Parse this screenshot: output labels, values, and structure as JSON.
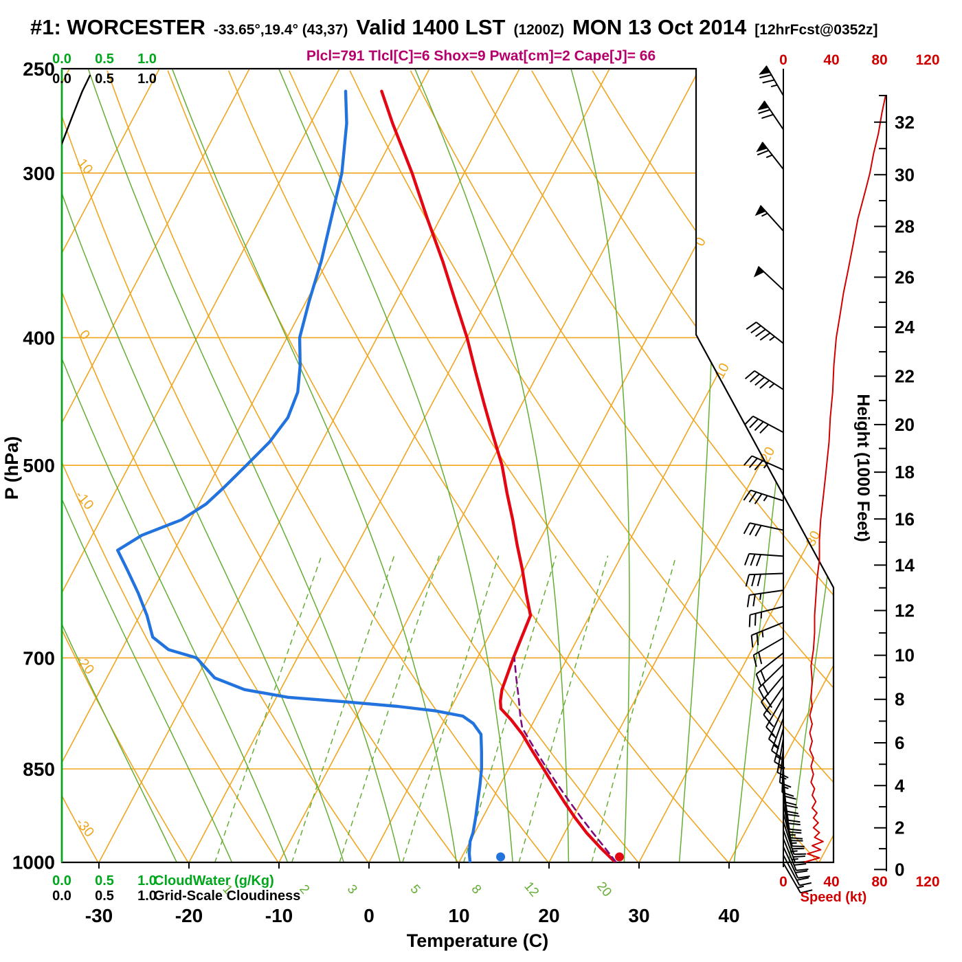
{
  "header": {
    "station": "#1: WORCESTER",
    "coords": "-33.65°,19.4° (43,37)",
    "valid": "Valid 1400 LST",
    "valid_utc": "(1200Z)",
    "date": "MON 13 Oct 2014",
    "fcst": "[12hrFcst@0352z]",
    "params": "Plcl=791 Tlcl[C]=6 Shox=9 Pwat[cm]=2 Cape[J]= 66"
  },
  "axes": {
    "pressure": {
      "title": "P (hPa)",
      "ticks": [
        250,
        300,
        400,
        500,
        700,
        850,
        1000
      ],
      "gridlines": [
        300,
        400,
        500,
        700,
        850
      ]
    },
    "temperature": {
      "title": "Temperature (C)",
      "ticks": [
        -30,
        -20,
        -10,
        0,
        10,
        20,
        30,
        40
      ]
    },
    "height": {
      "title": "Height (1000 Feet)",
      "ticks": [
        0,
        2,
        4,
        6,
        8,
        10,
        12,
        14,
        16,
        18,
        20,
        22,
        24,
        26,
        28,
        30,
        32
      ]
    },
    "speed": {
      "title": "Speed (kt)",
      "ticks": [
        0,
        40,
        80,
        120
      ]
    },
    "cloudwater": {
      "title": "CloudWater (g/Kg)",
      "ticks": [
        "0.0",
        "0.5",
        "1.0"
      ]
    },
    "cloudiness": {
      "title": "Grid-Scale Cloudiness",
      "ticks": [
        "0.0",
        "0.5",
        "1.0"
      ]
    }
  },
  "grid_labels": {
    "dry_adiabats_c": [
      10,
      0,
      -10,
      -20,
      -30
    ],
    "isotherms_c": [
      0,
      10,
      20,
      30
    ],
    "mixing_ratio_gkg": [
      1,
      2,
      3,
      5,
      8,
      12,
      20
    ]
  },
  "colors": {
    "isotherm_orange": "#f0a51f",
    "adiabat_green": "#64ad34",
    "axis_green": "#00a61b",
    "temp_red": "#e30613",
    "speed_red": "#d10000",
    "dewpoint_blue": "#2273dd",
    "parcel_purple": "#7d0c7d",
    "params_magenta": "#b5006b",
    "ink_black": "#000000"
  },
  "chart_data": {
    "type": "skewt_logp_sounding",
    "pressure_unit": "hPa",
    "temperature_unit": "C",
    "pressure_range": [
      250,
      1000
    ],
    "temperature_axis_range": [
      -30,
      40
    ],
    "temperature_profile": [
      [
        1000,
        27.3
      ],
      [
        975,
        24.8
      ],
      [
        950,
        22.4
      ],
      [
        925,
        20.2
      ],
      [
        900,
        18.1
      ],
      [
        875,
        16.0
      ],
      [
        850,
        13.9
      ],
      [
        825,
        11.7
      ],
      [
        800,
        9.5
      ],
      [
        780,
        7.4
      ],
      [
        765,
        5.6
      ],
      [
        755,
        5.1
      ],
      [
        740,
        4.6
      ],
      [
        700,
        4.0
      ],
      [
        675,
        3.7
      ],
      [
        650,
        3.4
      ],
      [
        625,
        1.6
      ],
      [
        600,
        -0.2
      ],
      [
        575,
        -2.2
      ],
      [
        550,
        -4.2
      ],
      [
        525,
        -6.4
      ],
      [
        500,
        -8.6
      ],
      [
        475,
        -11.3
      ],
      [
        450,
        -14.1
      ],
      [
        425,
        -17.0
      ],
      [
        400,
        -20.0
      ],
      [
        375,
        -23.5
      ],
      [
        350,
        -27.2
      ],
      [
        325,
        -31.4
      ],
      [
        300,
        -35.8
      ],
      [
        275,
        -40.9
      ],
      [
        260,
        -44.0
      ]
    ],
    "dewpoint_profile": [
      [
        1000,
        11.2
      ],
      [
        985,
        10.6
      ],
      [
        965,
        10.0
      ],
      [
        950,
        9.8
      ],
      [
        925,
        9.2
      ],
      [
        900,
        8.5
      ],
      [
        875,
        7.8
      ],
      [
        850,
        7.0
      ],
      [
        825,
        6.0
      ],
      [
        800,
        4.9
      ],
      [
        785,
        3.4
      ],
      [
        775,
        1.8
      ],
      [
        768,
        -1.5
      ],
      [
        762,
        -6.0
      ],
      [
        756,
        -12.0
      ],
      [
        750,
        -18.7
      ],
      [
        740,
        -24.0
      ],
      [
        725,
        -28.0
      ],
      [
        700,
        -31.2
      ],
      [
        690,
        -34.8
      ],
      [
        675,
        -37.3
      ],
      [
        650,
        -39.2
      ],
      [
        625,
        -41.5
      ],
      [
        600,
        -44.1
      ],
      [
        580,
        -46.3
      ],
      [
        565,
        -44.5
      ],
      [
        550,
        -41.0
      ],
      [
        535,
        -39.2
      ],
      [
        520,
        -38.2
      ],
      [
        500,
        -37.0
      ],
      [
        480,
        -35.8
      ],
      [
        460,
        -35.2
      ],
      [
        440,
        -35.6
      ],
      [
        420,
        -36.9
      ],
      [
        400,
        -38.6
      ],
      [
        375,
        -39.7
      ],
      [
        350,
        -40.7
      ],
      [
        325,
        -42.1
      ],
      [
        300,
        -43.6
      ],
      [
        275,
        -46.0
      ],
      [
        260,
        -48.0
      ]
    ],
    "parcel_profile": [
      [
        1000,
        27.4
      ],
      [
        975,
        25.3
      ],
      [
        950,
        23.1
      ],
      [
        925,
        20.9
      ],
      [
        900,
        18.7
      ],
      [
        875,
        16.5
      ],
      [
        850,
        14.3
      ],
      [
        825,
        12.1
      ],
      [
        800,
        9.9
      ],
      [
        791,
        9.1
      ],
      [
        775,
        8.2
      ],
      [
        750,
        6.9
      ],
      [
        725,
        5.5
      ],
      [
        700,
        4.1
      ]
    ],
    "surface_temperature_dot": 27.5,
    "surface_dewpoint_dot": 14.3,
    "wind_barbs": [
      [
        1002,
        150,
        15
      ],
      [
        988,
        152,
        20
      ],
      [
        974,
        155,
        20
      ],
      [
        960,
        158,
        25
      ],
      [
        946,
        160,
        25
      ],
      [
        932,
        162,
        25
      ],
      [
        918,
        165,
        25
      ],
      [
        904,
        168,
        20
      ],
      [
        890,
        170,
        20
      ],
      [
        876,
        172,
        20
      ],
      [
        862,
        175,
        20
      ],
      [
        848,
        178,
        20
      ],
      [
        834,
        182,
        15
      ],
      [
        820,
        186,
        15
      ],
      [
        806,
        190,
        15
      ],
      [
        792,
        195,
        15
      ],
      [
        778,
        200,
        15
      ],
      [
        764,
        205,
        15
      ],
      [
        750,
        210,
        15
      ],
      [
        736,
        215,
        15
      ],
      [
        722,
        220,
        20
      ],
      [
        708,
        226,
        20
      ],
      [
        694,
        232,
        20
      ],
      [
        676,
        240,
        20
      ],
      [
        658,
        248,
        25
      ],
      [
        640,
        256,
        25
      ],
      [
        622,
        262,
        25
      ],
      [
        604,
        268,
        30
      ],
      [
        586,
        274,
        30
      ],
      [
        560,
        282,
        30
      ],
      [
        532,
        288,
        35
      ],
      [
        504,
        294,
        35
      ],
      [
        472,
        298,
        40
      ],
      [
        438,
        303,
        45
      ],
      [
        404,
        308,
        45
      ],
      [
        368,
        313,
        50
      ],
      [
        332,
        318,
        55
      ],
      [
        298,
        322,
        65
      ],
      [
        278,
        326,
        70
      ],
      [
        262,
        330,
        75
      ]
    ],
    "wind_speed_profile": [
      [
        1000,
        18
      ],
      [
        993,
        30
      ],
      [
        986,
        20
      ],
      [
        979,
        31
      ],
      [
        972,
        24
      ],
      [
        965,
        33
      ],
      [
        958,
        26
      ],
      [
        950,
        30
      ],
      [
        942,
        25
      ],
      [
        934,
        29
      ],
      [
        926,
        25
      ],
      [
        918,
        28
      ],
      [
        910,
        24
      ],
      [
        900,
        27
      ],
      [
        890,
        24
      ],
      [
        880,
        26
      ],
      [
        870,
        23
      ],
      [
        858,
        25
      ],
      [
        846,
        23
      ],
      [
        834,
        25
      ],
      [
        822,
        22
      ],
      [
        810,
        24
      ],
      [
        798,
        22
      ],
      [
        786,
        24
      ],
      [
        774,
        22
      ],
      [
        762,
        24
      ],
      [
        750,
        23
      ],
      [
        730,
        24
      ],
      [
        710,
        23
      ],
      [
        690,
        25
      ],
      [
        670,
        26
      ],
      [
        650,
        26
      ],
      [
        630,
        27
      ],
      [
        610,
        28
      ],
      [
        590,
        30
      ],
      [
        570,
        30
      ],
      [
        550,
        31
      ],
      [
        530,
        33
      ],
      [
        510,
        35
      ],
      [
        500,
        36
      ],
      [
        480,
        38
      ],
      [
        460,
        39
      ],
      [
        440,
        41
      ],
      [
        420,
        42
      ],
      [
        400,
        44
      ],
      [
        385,
        47
      ],
      [
        370,
        50
      ],
      [
        355,
        54
      ],
      [
        340,
        58
      ],
      [
        325,
        62
      ],
      [
        310,
        68
      ],
      [
        300,
        72
      ],
      [
        290,
        75
      ],
      [
        280,
        79
      ],
      [
        270,
        82
      ],
      [
        262,
        85
      ]
    ],
    "cloud_fraction_profile": [
      [
        285,
        0.0
      ],
      [
        272,
        0.12
      ],
      [
        260,
        0.24
      ],
      [
        253,
        0.33
      ]
    ],
    "cloud_water_profile_value": 0.0
  }
}
